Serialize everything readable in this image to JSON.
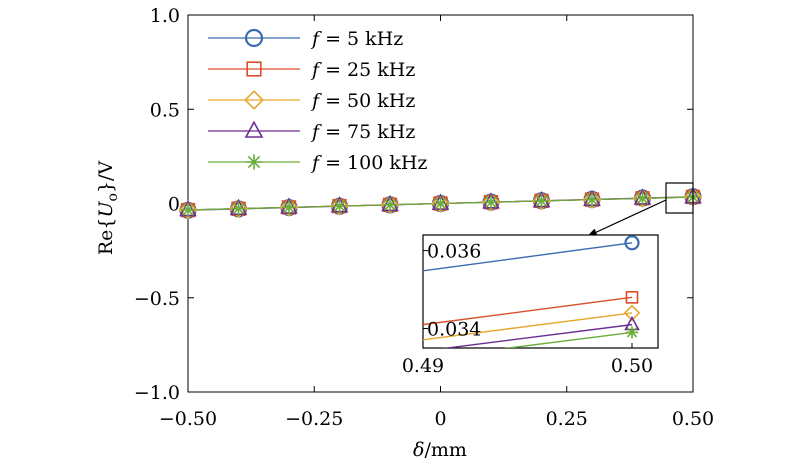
{
  "chart_data": {
    "type": "line",
    "xlabel": "δ/mm",
    "ylabel": "Re{Uo}/V",
    "xlim": [
      -0.5,
      0.5
    ],
    "ylim": [
      -1.0,
      1.0
    ],
    "xticks": [
      -0.5,
      -0.25,
      0,
      0.25,
      0.5
    ],
    "xtick_labels": [
      "−0.50",
      "−0.25",
      "0",
      "0.25",
      "0.50"
    ],
    "yticks": [
      -1.0,
      -0.5,
      0,
      0.5,
      1.0
    ],
    "ytick_labels": [
      "−1.0",
      "−0.5",
      "0",
      "0.5",
      "1.0"
    ],
    "legend_position": "top-left",
    "x": [
      -0.5,
      -0.4,
      -0.3,
      -0.2,
      -0.1,
      0,
      0.1,
      0.2,
      0.3,
      0.4,
      0.5
    ],
    "series": [
      {
        "name": "f = 5 kHz",
        "label_var": "f",
        "label_rest": " = 5 kHz",
        "color": "#3a6bb0",
        "marker": "circle",
        "values": [
          -0.0362,
          -0.029,
          -0.0217,
          -0.0145,
          -0.0072,
          0,
          0.0072,
          0.0145,
          0.0217,
          0.029,
          0.0362
        ]
      },
      {
        "name": "f = 25 kHz",
        "label_var": "f",
        "label_rest": " = 25 kHz",
        "color": "#d94e2b",
        "marker": "square",
        "values": [
          -0.0348,
          -0.0278,
          -0.0209,
          -0.0139,
          -0.007,
          0,
          0.007,
          0.0139,
          0.0209,
          0.0278,
          0.0348
        ]
      },
      {
        "name": "f = 50 kHz",
        "label_var": "f",
        "label_rest": " = 50 kHz",
        "color": "#e5a82e",
        "marker": "diamond",
        "values": [
          -0.0344,
          -0.0275,
          -0.0206,
          -0.0138,
          -0.0069,
          0,
          0.0069,
          0.0138,
          0.0206,
          0.0275,
          0.0344
        ]
      },
      {
        "name": "f = 75 kHz",
        "label_var": "f",
        "label_rest": " = 75 kHz",
        "color": "#6b2f91",
        "marker": "triangle",
        "values": [
          -0.0341,
          -0.0273,
          -0.0205,
          -0.0136,
          -0.0068,
          0,
          0.0068,
          0.0136,
          0.0205,
          0.0273,
          0.0341
        ]
      },
      {
        "name": "f = 100 kHz",
        "label_var": "f",
        "label_rest": " = 100 kHz",
        "color": "#6aae3a",
        "marker": "star",
        "values": [
          -0.0339,
          -0.0271,
          -0.0203,
          -0.0136,
          -0.0068,
          0,
          0.0068,
          0.0136,
          0.0203,
          0.0271,
          0.0339
        ]
      }
    ],
    "inset": {
      "xlim": [
        0.49,
        0.5
      ],
      "ylim": [
        0.0335,
        0.0364
      ],
      "xticks": [
        0.49,
        0.5
      ],
      "xtick_labels": [
        "0.49",
        "0.50"
      ],
      "yticks": [
        0.034,
        0.036
      ],
      "ytick_labels": [
        "0.034",
        "0.036"
      ]
    }
  }
}
